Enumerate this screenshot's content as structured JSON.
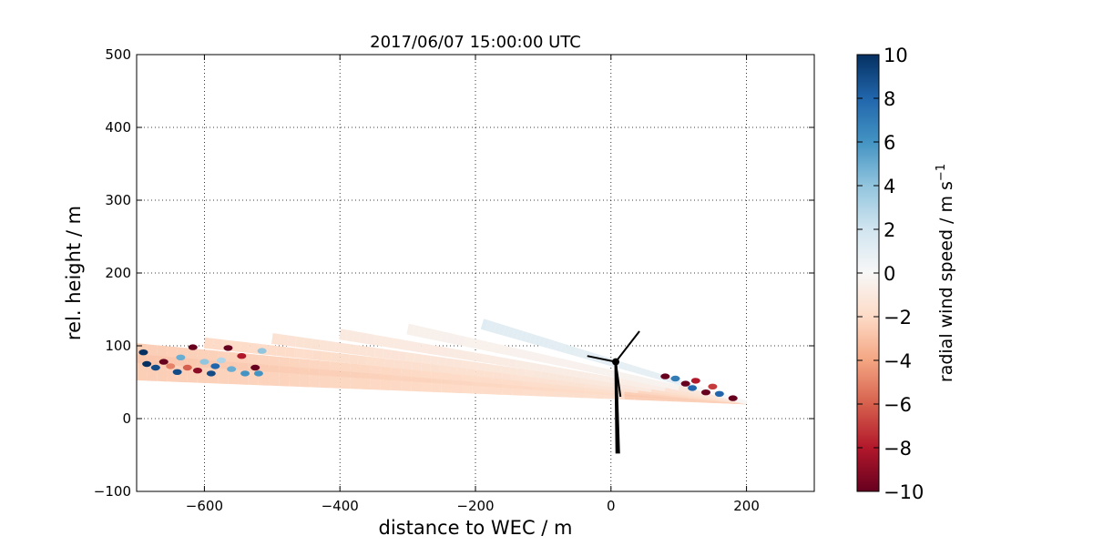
{
  "chart_data": {
    "type": "scatter",
    "title": "2017/06/07 15:00:00 UTC",
    "xlabel": "distance to WEC / m",
    "ylabel": "rel. height / m",
    "xlim": [
      -700,
      300
    ],
    "ylim": [
      -100,
      500
    ],
    "x_ticks": [
      -600,
      -400,
      -200,
      0,
      200
    ],
    "x_tick_labels": [
      "−600",
      "−400",
      "−200",
      "0",
      "200"
    ],
    "y_ticks": [
      -100,
      0,
      100,
      200,
      300,
      400,
      500
    ],
    "y_tick_labels": [
      "−100",
      "0",
      "100",
      "200",
      "300",
      "400",
      "500"
    ],
    "grid": true,
    "colorbar": {
      "label": "radial wind speed / m s",
      "label_superscript": "−1",
      "colormap": "RdBu",
      "range": [
        -10,
        10
      ],
      "ticks": [
        -10,
        -8,
        -6,
        -4,
        -2,
        0,
        2,
        4,
        6,
        8,
        10
      ],
      "tick_labels": [
        "−10",
        "−8",
        "−6",
        "−4",
        "−2",
        "0",
        "2",
        "4",
        "6",
        "8",
        "10"
      ]
    },
    "scan": {
      "lidar_position": [
        200,
        22
      ],
      "beams": [
        {
          "far_x": -700,
          "far_y": 60,
          "base_speed": -2.5
        },
        {
          "far_x": -700,
          "far_y": 72,
          "base_speed": -2.5
        },
        {
          "far_x": -700,
          "far_y": 84,
          "base_speed": -2.8
        },
        {
          "far_x": -700,
          "far_y": 96,
          "base_speed": -2.5
        },
        {
          "far_x": -600,
          "far_y": 104,
          "base_speed": -2.0
        },
        {
          "far_x": -500,
          "far_y": 110,
          "base_speed": -1.5
        },
        {
          "far_x": -400,
          "far_y": 116,
          "base_speed": -1.0
        },
        {
          "far_x": -300,
          "far_y": 123,
          "base_speed": -0.5
        },
        {
          "far_x": -190,
          "far_y": 130,
          "base_speed": 1.2
        }
      ],
      "noisy_points": [
        {
          "x": -690,
          "y": 91,
          "speed": 10
        },
        {
          "x": -685,
          "y": 75,
          "speed": 10
        },
        {
          "x": -672,
          "y": 70,
          "speed": 9
        },
        {
          "x": -660,
          "y": 78,
          "speed": -10
        },
        {
          "x": -650,
          "y": 72,
          "speed": -5
        },
        {
          "x": -640,
          "y": 64,
          "speed": 9
        },
        {
          "x": -635,
          "y": 84,
          "speed": 5
        },
        {
          "x": -625,
          "y": 70,
          "speed": -6
        },
        {
          "x": -617,
          "y": 98,
          "speed": -10
        },
        {
          "x": -610,
          "y": 66,
          "speed": -9
        },
        {
          "x": -600,
          "y": 78,
          "speed": 4
        },
        {
          "x": -590,
          "y": 62,
          "speed": 9
        },
        {
          "x": -584,
          "y": 72,
          "speed": 8
        },
        {
          "x": -575,
          "y": 80,
          "speed": 3
        },
        {
          "x": -565,
          "y": 97,
          "speed": -10
        },
        {
          "x": -560,
          "y": 68,
          "speed": 5
        },
        {
          "x": -545,
          "y": 86,
          "speed": -8
        },
        {
          "x": -540,
          "y": 62,
          "speed": 6
        },
        {
          "x": -525,
          "y": 70,
          "speed": -10
        },
        {
          "x": -520,
          "y": 62,
          "speed": 6
        },
        {
          "x": -515,
          "y": 93,
          "speed": 4
        },
        {
          "x": 80,
          "y": 58,
          "speed": -10
        },
        {
          "x": 95,
          "y": 55,
          "speed": 7
        },
        {
          "x": 110,
          "y": 48,
          "speed": -10
        },
        {
          "x": 120,
          "y": 42,
          "speed": 8
        },
        {
          "x": 125,
          "y": 52,
          "speed": -8
        },
        {
          "x": 140,
          "y": 36,
          "speed": -10
        },
        {
          "x": 150,
          "y": 44,
          "speed": -7
        },
        {
          "x": 160,
          "y": 34,
          "speed": 8
        },
        {
          "x": 180,
          "y": 28,
          "speed": -10
        }
      ]
    },
    "turbine": {
      "tower_base": [
        10,
        -48
      ],
      "hub": [
        7,
        78
      ],
      "blade_tips": [
        [
          42,
          120
        ],
        [
          14,
          30
        ],
        [
          -35,
          86
        ]
      ]
    }
  }
}
